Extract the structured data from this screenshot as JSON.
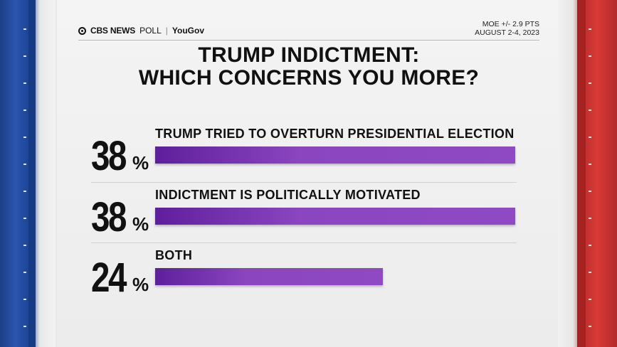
{
  "header": {
    "brand": "CBS NEWS",
    "poll": "POLL",
    "separator": "|",
    "partner": "YouGov",
    "moe": "MOE +/- 2.9 PTS",
    "dates": "AUGUST 2-4, 2023"
  },
  "chart_data": {
    "type": "bar",
    "title_line1": "TRUMP INDICTMENT:",
    "title_line2": "WHICH CONCERNS YOU MORE?",
    "categories": [
      "TRUMP TRIED TO OVERTURN PRESIDENTIAL ELECTION",
      "INDICTMENT IS POLITICALLY MOTIVATED",
      "BOTH"
    ],
    "values": [
      38,
      38,
      24
    ],
    "value_suffix": "%",
    "xlim": [
      0,
      38
    ],
    "bar_color": "#8a45bf"
  }
}
